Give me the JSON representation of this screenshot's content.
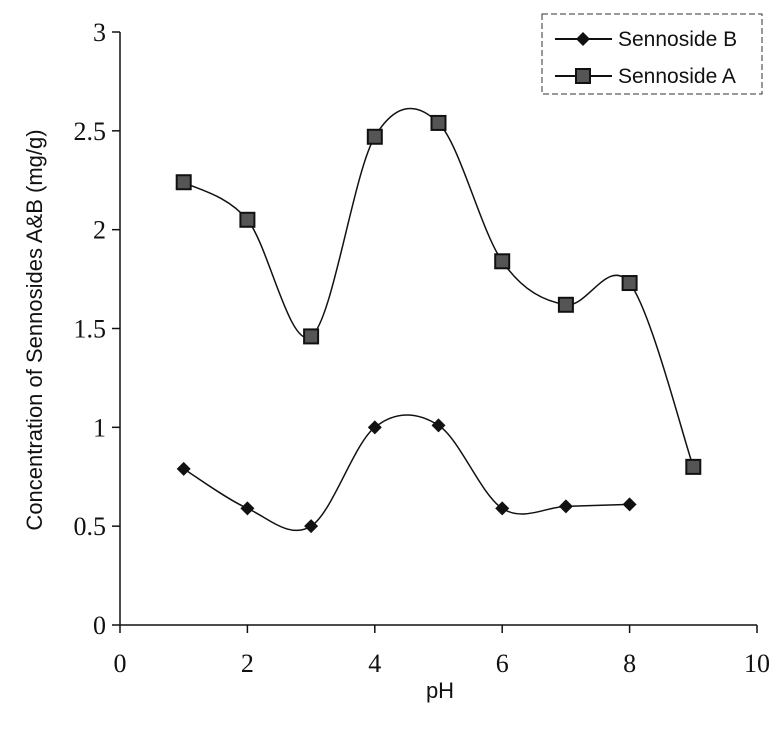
{
  "chart_data": {
    "type": "line",
    "xlabel": "pH",
    "ylabel": "Concentration of Sennosides A&B (mg/g)",
    "xlim": [
      0,
      10
    ],
    "ylim": [
      0,
      3
    ],
    "x_ticks": [
      "0",
      "2",
      "4",
      "6",
      "8",
      "10"
    ],
    "y_ticks": [
      "0",
      "0.5",
      "1",
      "1.5",
      "2",
      "2.5",
      "3"
    ],
    "grid": false,
    "legend_position": "top-right",
    "series": [
      {
        "name": "Sennoside B",
        "marker": "diamond",
        "color": "#111111",
        "x": [
          1,
          2,
          3,
          4,
          5,
          6,
          7,
          8
        ],
        "y": [
          0.79,
          0.59,
          0.5,
          1.0,
          1.01,
          0.59,
          0.6,
          0.61
        ]
      },
      {
        "name": "Sennoside A",
        "marker": "square",
        "color": "#111111",
        "x": [
          1,
          2,
          3,
          4,
          5,
          6,
          7,
          8,
          9
        ],
        "y": [
          2.24,
          2.05,
          1.46,
          2.47,
          2.54,
          1.84,
          1.62,
          1.73,
          0.8
        ]
      }
    ]
  }
}
